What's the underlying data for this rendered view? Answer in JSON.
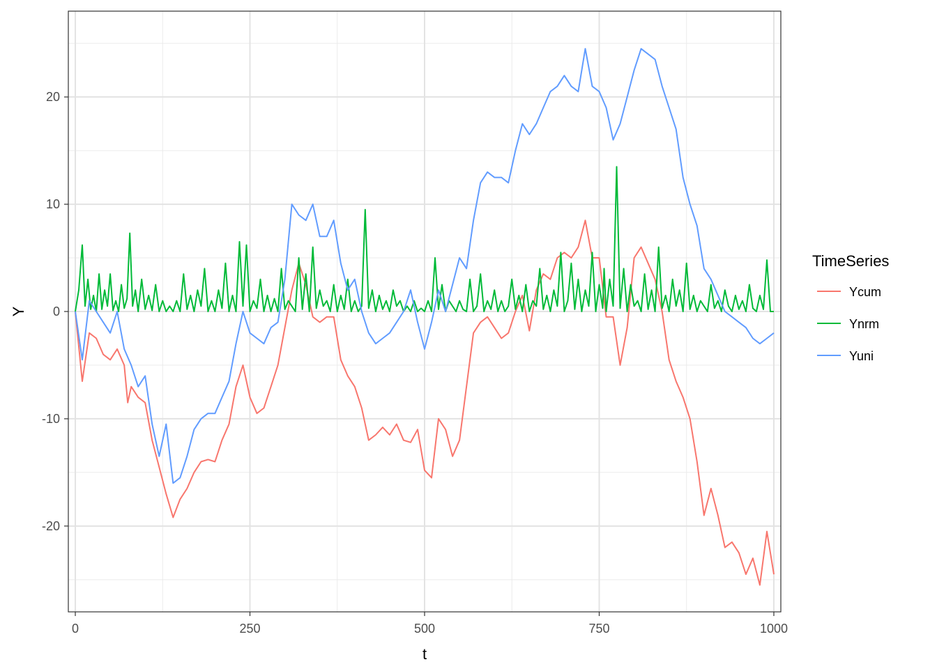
{
  "chart_data": {
    "type": "line",
    "xlabel": "t",
    "ylabel": "Y",
    "xlim": [
      -10,
      1010
    ],
    "ylim": [
      -28,
      28
    ],
    "x_ticks": [
      0,
      250,
      500,
      750,
      1000
    ],
    "x_tick_labels": [
      "0",
      "250",
      "500",
      "750",
      "1000"
    ],
    "y_ticks": [
      -20,
      -10,
      0,
      10,
      20
    ],
    "y_tick_labels": [
      "-20",
      "-10",
      "0",
      "10",
      "20"
    ],
    "grid": true,
    "legend": {
      "title": "TimeSeries",
      "placement": "right"
    },
    "series": [
      {
        "name": "Ycum",
        "color": "#F8766D",
        "x": [
          0,
          10,
          20,
          30,
          40,
          50,
          60,
          70,
          75,
          80,
          90,
          100,
          110,
          120,
          130,
          140,
          150,
          160,
          170,
          180,
          190,
          200,
          210,
          220,
          230,
          240,
          250,
          260,
          270,
          280,
          290,
          300,
          310,
          320,
          330,
          340,
          350,
          360,
          370,
          380,
          390,
          400,
          410,
          420,
          430,
          440,
          450,
          460,
          470,
          480,
          490,
          500,
          510,
          520,
          530,
          540,
          550,
          560,
          570,
          580,
          590,
          600,
          610,
          620,
          630,
          640,
          650,
          660,
          670,
          680,
          690,
          700,
          710,
          720,
          730,
          740,
          750,
          760,
          770,
          780,
          790,
          800,
          810,
          820,
          830,
          840,
          850,
          860,
          870,
          880,
          890,
          900,
          910,
          920,
          930,
          940,
          950,
          960,
          970,
          980,
          990,
          1000
        ],
        "y": [
          0,
          -6.5,
          -2,
          -2.5,
          -4,
          -4.5,
          -3.5,
          -5,
          -8.5,
          -7,
          -8,
          -8.5,
          -12,
          -14.5,
          -17,
          -19.2,
          -17.5,
          -16.5,
          -15,
          -14,
          -13.8,
          -14,
          -12,
          -10.5,
          -7,
          -5,
          -8,
          -9.5,
          -9,
          -7,
          -5,
          -1.5,
          2,
          4.5,
          2.5,
          -0.5,
          -1,
          -0.5,
          -0.5,
          -4.5,
          -6,
          -7,
          -9,
          -12,
          -11.5,
          -10.8,
          -11.5,
          -10.5,
          -12,
          -12.2,
          -11,
          -14.8,
          -15.5,
          -10,
          -11,
          -13.5,
          -12,
          -7,
          -2,
          -1,
          -0.5,
          -1.5,
          -2.5,
          -2,
          0,
          1.5,
          -1.8,
          2,
          3.5,
          3,
          5,
          5.5,
          5,
          6,
          8.5,
          5,
          5,
          -0.5,
          -0.5,
          -5,
          -1.5,
          5,
          6,
          4.5,
          3,
          0,
          -4.5,
          -6.5,
          -8,
          -10,
          -14,
          -19,
          -16.5,
          -19,
          -22,
          -21.5,
          -22.5,
          -24.5,
          -23,
          -25.5,
          -20.5,
          -24.5
        ]
      },
      {
        "name": "Ynrm",
        "color": "#00BA38",
        "x": [
          0,
          5,
          10,
          14,
          18,
          22,
          26,
          30,
          34,
          38,
          42,
          46,
          50,
          54,
          58,
          62,
          66,
          70,
          74,
          78,
          82,
          86,
          90,
          95,
          100,
          105,
          110,
          115,
          120,
          125,
          130,
          135,
          140,
          145,
          150,
          155,
          160,
          165,
          170,
          175,
          180,
          185,
          190,
          195,
          200,
          205,
          210,
          215,
          220,
          225,
          230,
          235,
          240,
          245,
          250,
          255,
          260,
          265,
          270,
          275,
          280,
          285,
          290,
          295,
          300,
          305,
          310,
          315,
          320,
          325,
          330,
          335,
          340,
          345,
          350,
          355,
          360,
          365,
          370,
          375,
          380,
          385,
          390,
          395,
          400,
          405,
          410,
          415,
          420,
          425,
          430,
          435,
          440,
          445,
          450,
          455,
          460,
          465,
          470,
          475,
          480,
          485,
          490,
          495,
          500,
          505,
          510,
          515,
          520,
          525,
          530,
          535,
          540,
          545,
          550,
          555,
          560,
          565,
          570,
          575,
          580,
          585,
          590,
          595,
          600,
          605,
          610,
          615,
          620,
          625,
          630,
          635,
          640,
          645,
          650,
          655,
          660,
          665,
          670,
          675,
          680,
          685,
          690,
          695,
          700,
          705,
          710,
          715,
          720,
          725,
          730,
          735,
          740,
          745,
          750,
          755,
          757,
          760,
          765,
          770,
          775,
          780,
          785,
          790,
          795,
          800,
          805,
          810,
          815,
          820,
          825,
          830,
          835,
          840,
          845,
          850,
          855,
          860,
          865,
          870,
          875,
          880,
          885,
          890,
          895,
          900,
          905,
          910,
          915,
          920,
          925,
          930,
          935,
          940,
          945,
          950,
          955,
          960,
          965,
          970,
          975,
          980,
          985,
          990,
          995,
          1000
        ],
        "y": [
          0,
          2,
          6.2,
          0.5,
          3,
          0.2,
          1.5,
          0,
          3.5,
          0.2,
          2,
          0.5,
          3.5,
          0.1,
          1,
          0,
          2.5,
          0.3,
          1.2,
          7.3,
          0.5,
          2,
          0,
          3,
          0.2,
          1.5,
          0.1,
          2.5,
          0,
          1,
          0,
          0.5,
          0,
          1,
          0,
          3.5,
          0.2,
          1.5,
          0,
          2,
          0.5,
          4,
          0,
          1,
          0,
          2,
          0.3,
          4.5,
          0,
          1.5,
          0,
          6.5,
          0.5,
          6.2,
          0,
          1,
          0.3,
          3,
          0,
          1.5,
          0,
          1.2,
          0,
          4,
          0.2,
          1,
          0.5,
          0,
          5,
          0.2,
          3.5,
          0,
          6,
          0.3,
          2,
          0.5,
          1,
          0,
          2.5,
          0,
          1.5,
          0.2,
          3,
          0,
          1,
          0,
          0.5,
          9.5,
          0.3,
          2,
          0,
          1.5,
          0.2,
          1,
          0,
          2,
          0.5,
          1,
          0,
          0.5,
          0,
          1,
          0,
          0.3,
          0,
          1,
          0,
          5,
          0.2,
          2.5,
          0,
          1,
          0.5,
          0,
          1,
          0.2,
          0,
          3,
          0,
          0.5,
          3.5,
          0,
          1,
          0.2,
          2,
          0,
          1,
          0,
          0.5,
          3,
          0.2,
          1.5,
          0,
          2.5,
          0,
          1,
          0.5,
          4,
          0.2,
          1.5,
          0,
          2,
          0.5,
          5.5,
          0,
          1,
          4.5,
          0.2,
          3,
          0,
          2,
          0.5,
          5.5,
          0,
          2.5,
          0.3,
          4,
          0,
          3,
          0.5,
          13.5,
          0.3,
          4,
          0,
          2.5,
          0.5,
          1,
          0,
          3.5,
          0.2,
          2,
          0,
          6,
          0.3,
          1.5,
          0,
          3,
          0.5,
          2,
          0,
          4.5,
          0.2,
          1.5,
          0,
          1,
          0.5,
          0,
          2.5,
          0.3,
          1,
          0,
          2,
          0.5,
          0,
          1.5,
          0.2,
          1,
          0,
          2.5,
          0.3,
          0,
          1.5,
          0.2,
          4.8,
          0,
          0
        ]
      },
      {
        "name": "Yuni",
        "color": "#619CFF",
        "x": [
          0,
          10,
          20,
          30,
          40,
          50,
          60,
          70,
          80,
          90,
          100,
          110,
          120,
          130,
          140,
          150,
          160,
          170,
          180,
          190,
          200,
          210,
          220,
          230,
          240,
          250,
          260,
          270,
          280,
          290,
          300,
          310,
          320,
          330,
          340,
          350,
          360,
          370,
          380,
          390,
          400,
          410,
          420,
          430,
          440,
          450,
          460,
          470,
          480,
          490,
          500,
          510,
          520,
          530,
          540,
          550,
          560,
          570,
          580,
          590,
          600,
          610,
          620,
          630,
          640,
          650,
          660,
          670,
          680,
          690,
          700,
          710,
          720,
          730,
          740,
          750,
          760,
          770,
          780,
          790,
          800,
          810,
          820,
          830,
          840,
          850,
          860,
          870,
          880,
          890,
          900,
          910,
          920,
          930,
          940,
          950,
          960,
          970,
          980,
          990,
          1000
        ],
        "y": [
          0,
          -4.5,
          1,
          0,
          -1,
          -2,
          0,
          -3.5,
          -5,
          -7,
          -6,
          -10.5,
          -13.5,
          -10.5,
          -16,
          -15.5,
          -13.5,
          -11,
          -10,
          -9.5,
          -9.5,
          -8,
          -6.5,
          -3,
          0,
          -2,
          -2.5,
          -3,
          -1.5,
          -1,
          3,
          10,
          9,
          8.5,
          10,
          7,
          7,
          8.5,
          4.5,
          2,
          3,
          0,
          -2,
          -3,
          -2.5,
          -2,
          -1,
          0,
          2,
          -1,
          -3.5,
          -1,
          2,
          0,
          2.5,
          5,
          4,
          8.5,
          12,
          13,
          12.5,
          12.5,
          12,
          15,
          17.5,
          16.5,
          17.5,
          19,
          20.5,
          21,
          22,
          21,
          20.5,
          24.5,
          21,
          20.5,
          19,
          16,
          17.5,
          20,
          22.5,
          24.5,
          24,
          23.5,
          21,
          19,
          17,
          12.5,
          10,
          8,
          4,
          3,
          1.5,
          0,
          -0.5,
          -1,
          -1.5,
          -2.5,
          -3,
          -2.5,
          -2
        ]
      }
    ]
  }
}
